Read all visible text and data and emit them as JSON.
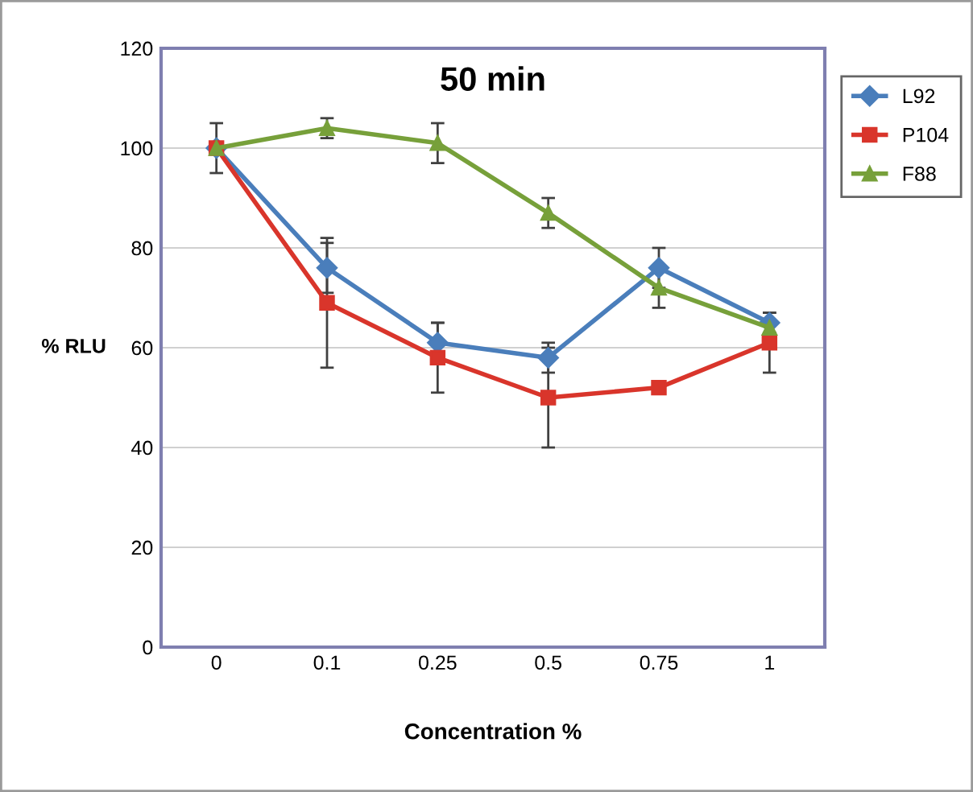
{
  "chart_data": {
    "type": "line",
    "title": "50 min",
    "xlabel": "Concentration %",
    "ylabel": "% RLU",
    "categories": [
      "0",
      "0.1",
      "0.25",
      "0.5",
      "0.75",
      "1"
    ],
    "series": [
      {
        "name": "L92",
        "color": "#4a7ebb",
        "marker": "diamond",
        "values": [
          100,
          76,
          61,
          58,
          76,
          65
        ],
        "errors": [
          null,
          5,
          4,
          3,
          4,
          2
        ]
      },
      {
        "name": "P104",
        "color": "#d9352b",
        "marker": "square",
        "values": [
          100,
          69,
          58,
          50,
          52,
          61
        ],
        "errors": [
          null,
          13,
          7,
          10,
          null,
          6
        ]
      },
      {
        "name": "F88",
        "color": "#77a03a",
        "marker": "triangle",
        "values": [
          100,
          104,
          101,
          87,
          72,
          64
        ],
        "errors": [
          5,
          2,
          4,
          3,
          4,
          null
        ]
      }
    ],
    "ylim": [
      0,
      120
    ],
    "yticks": [
      0,
      20,
      40,
      60,
      80,
      100,
      120
    ],
    "grid": "y",
    "legend": "right"
  }
}
